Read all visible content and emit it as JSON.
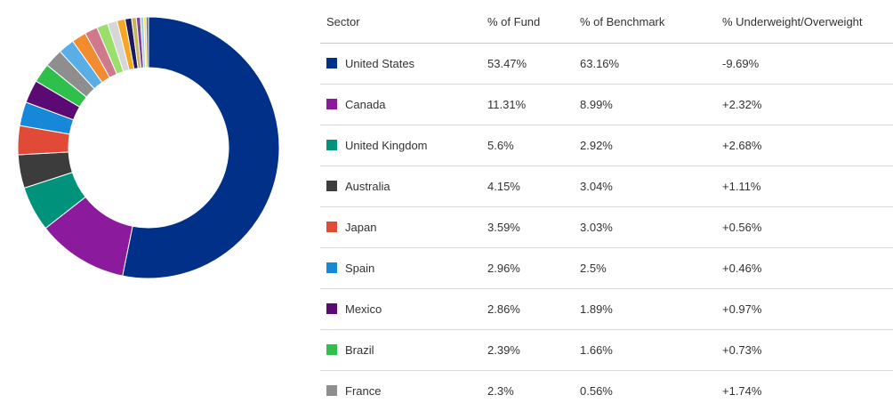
{
  "chart_data": {
    "type": "pie",
    "donut": true,
    "table": {
      "headers": [
        "Sector",
        "% of Fund",
        "% of Benchmark",
        "% Underweight/Overweight"
      ],
      "rows": [
        {
          "name": "United States",
          "fund": "53.47%",
          "benchmark": "63.16%",
          "diff": "-9.69%",
          "color": "#003087"
        },
        {
          "name": "Canada",
          "fund": "11.31%",
          "benchmark": "8.99%",
          "diff": "+2.32%",
          "color": "#8B1A9C"
        },
        {
          "name": "United Kingdom",
          "fund": "5.6%",
          "benchmark": "2.92%",
          "diff": "+2.68%",
          "color": "#00927A"
        },
        {
          "name": "Australia",
          "fund": "4.15%",
          "benchmark": "3.04%",
          "diff": "+1.11%",
          "color": "#3C3C3C"
        },
        {
          "name": "Japan",
          "fund": "3.59%",
          "benchmark": "3.03%",
          "diff": "+0.56%",
          "color": "#E04A36"
        },
        {
          "name": "Spain",
          "fund": "2.96%",
          "benchmark": "2.5%",
          "diff": "+0.46%",
          "color": "#1788D8"
        },
        {
          "name": "Mexico",
          "fund": "2.86%",
          "benchmark": "1.89%",
          "diff": "+0.97%",
          "color": "#5C0A73"
        },
        {
          "name": "Brazil",
          "fund": "2.39%",
          "benchmark": "1.66%",
          "diff": "+0.73%",
          "color": "#2EC04A"
        },
        {
          "name": "France",
          "fund": "2.3%",
          "benchmark": "0.56%",
          "diff": "+1.74%",
          "color": "#8E8E8E"
        }
      ]
    },
    "donut_slices": [
      {
        "value": 53.47,
        "color": "#003087"
      },
      {
        "value": 11.31,
        "color": "#8B1A9C"
      },
      {
        "value": 5.6,
        "color": "#00927A"
      },
      {
        "value": 4.15,
        "color": "#3C3C3C"
      },
      {
        "value": 3.59,
        "color": "#E04A36"
      },
      {
        "value": 2.96,
        "color": "#1788D8"
      },
      {
        "value": 2.86,
        "color": "#5C0A73"
      },
      {
        "value": 2.39,
        "color": "#2EC04A"
      },
      {
        "value": 2.3,
        "color": "#8E8E8E"
      },
      {
        "value": 2.0,
        "color": "#5AAEE6"
      },
      {
        "value": 1.8,
        "color": "#F28C30"
      },
      {
        "value": 1.6,
        "color": "#D0798C"
      },
      {
        "value": 1.4,
        "color": "#9ADF6C"
      },
      {
        "value": 1.2,
        "color": "#D7D7D7"
      },
      {
        "value": 1.0,
        "color": "#F5A623"
      },
      {
        "value": 0.8,
        "color": "#1A1A5E"
      },
      {
        "value": 0.6,
        "color": "#C8B45A"
      },
      {
        "value": 0.5,
        "color": "#7B3F9E"
      },
      {
        "value": 0.4,
        "color": "#A6CEE3"
      },
      {
        "value": 0.3,
        "color": "#F0E442"
      },
      {
        "value": 0.3,
        "color": "#6B6B6B"
      }
    ]
  }
}
